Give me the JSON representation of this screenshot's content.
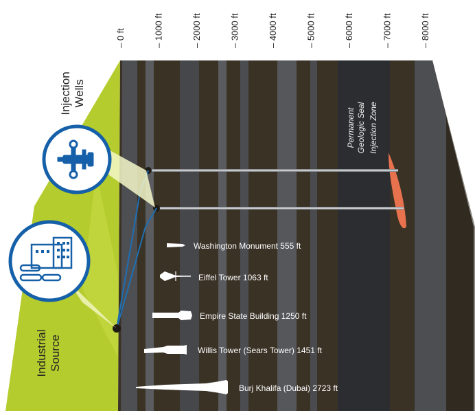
{
  "depth_scale": {
    "labels": [
      "0 ft",
      "1000 ft",
      "2000 ft",
      "3000 ft",
      "4000 ft",
      "5000 ft",
      "6000 ft",
      "7000 ft",
      "8000 ft"
    ]
  },
  "callouts": {
    "injection_wells": [
      "Injection",
      "Wells"
    ],
    "industrial_source": [
      "Industrial",
      "Source"
    ]
  },
  "zones": {
    "seal": [
      "Permanent",
      "Geologic Seal"
    ],
    "injection": "Injection Zone"
  },
  "structures": [
    {
      "label": "Washington Monument 555 ft",
      "height_ft": 555
    },
    {
      "label": "Eiffel Tower 1063 ft",
      "height_ft": 1063
    },
    {
      "label": "Empire State Building 1250 ft",
      "height_ft": 1250
    },
    {
      "label": "Willis Tower (Sears Tower) 1451 ft",
      "height_ft": 1451
    },
    {
      "label": "Burj Khalifa (Dubai) 2723 ft",
      "height_ft": 2723
    }
  ],
  "colors": {
    "surface": "#b5cc2e",
    "rock_dark": "#3b3226",
    "rock_gray": "#55565a",
    "seal": "#2c2d31",
    "injection": "#e8724e",
    "icon_blue": "#1560a8",
    "pipe": "#1d6fb3"
  }
}
